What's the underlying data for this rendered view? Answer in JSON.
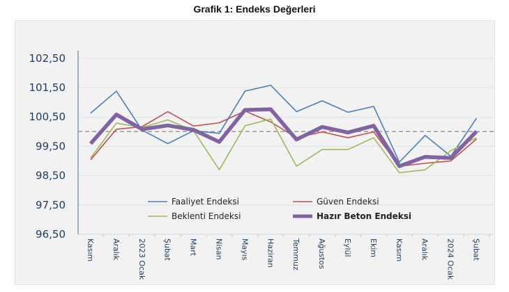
{
  "chart_data": {
    "type": "line",
    "title": "Grafik 1: Endeks Değerleri",
    "categories": [
      "Kasım",
      "Aralık",
      "2023 Ocak",
      "Şubat",
      "Mart",
      "Nisan",
      "Mayıs",
      "Haziran",
      "Temmuz",
      "Ağustos",
      "Eylül",
      "Ekim",
      "Kasım",
      "Aralık",
      "2024 Ocak",
      "Şubat"
    ],
    "yticks": [
      "96,50",
      "97,50",
      "98,50",
      "99,50",
      "100,50",
      "101,50",
      "102,50"
    ],
    "ylim": [
      96.5,
      102.5
    ],
    "reference_line": 100,
    "grid": true,
    "legend_position": "inside-bottom",
    "series": [
      {
        "name": "Faaliyet Endeksi",
        "color": "#4a7ebb",
        "width": "thin",
        "values": [
          100.63,
          101.38,
          100.05,
          99.59,
          100.03,
          99.94,
          101.38,
          101.58,
          100.68,
          101.05,
          100.66,
          100.86,
          98.96,
          99.87,
          99.16,
          100.46
        ]
      },
      {
        "name": "Güven Endeksi",
        "color": "#c0504d",
        "width": "thin",
        "values": [
          99.04,
          100.08,
          100.17,
          100.68,
          100.19,
          100.3,
          100.7,
          100.33,
          99.79,
          99.99,
          99.79,
          99.99,
          98.82,
          98.92,
          99.0,
          99.75
        ]
      },
      {
        "name": "Beklenti Endeksi",
        "color": "#9bbb59",
        "width": "thin",
        "values": [
          99.1,
          100.29,
          100.14,
          100.4,
          100.03,
          98.7,
          100.2,
          100.43,
          98.82,
          99.39,
          99.39,
          99.79,
          98.6,
          98.7,
          99.35,
          99.79
        ]
      },
      {
        "name": "Hazır Beton Endeksi",
        "color": "#8064a2",
        "width": "thick",
        "values": [
          99.59,
          100.58,
          100.08,
          100.21,
          100.06,
          99.65,
          100.74,
          100.76,
          99.73,
          100.16,
          99.97,
          100.2,
          98.82,
          99.14,
          99.1,
          100.01
        ]
      }
    ]
  }
}
